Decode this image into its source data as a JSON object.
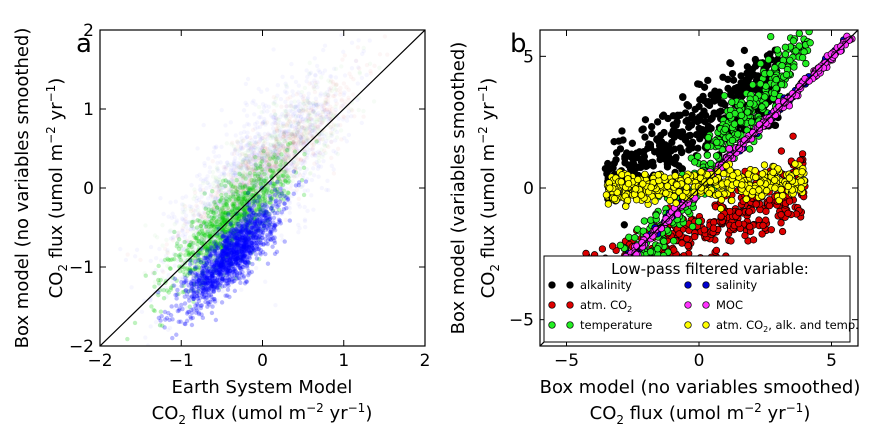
{
  "chart_data": [
    {
      "panel": "a",
      "type": "scatter",
      "xlabel_line1": "Earth System Model",
      "xlabel_line2": "CO2 flux (umol m−2 yr−1)",
      "ylabel_line1": "Box model (no variables smoothed)",
      "ylabel_line2": "CO2 flux (umol m−2 yr−1)",
      "xlim": [
        -2,
        2
      ],
      "ylim": [
        -2,
        2
      ],
      "xticks": [
        "−2",
        "−1",
        "0",
        "1",
        "2"
      ],
      "yticks": [
        "−2",
        "−1",
        "0",
        "1",
        "2"
      ],
      "identity_line": true,
      "series": [
        {
          "color": "#0000ff",
          "center": [
            -0.35,
            -0.85
          ],
          "spread": [
            0.32,
            0.28
          ],
          "note_density": "dense core, faint halo"
        },
        {
          "color": "#00c000",
          "center": [
            -0.2,
            -0.45
          ],
          "spread": [
            0.35,
            0.3
          ]
        },
        {
          "color": "#c00000",
          "center": [
            0.0,
            0.1
          ],
          "spread": [
            0.45,
            0.45
          ]
        }
      ]
    },
    {
      "panel": "b",
      "type": "scatter",
      "xlabel_line1": "Box model (no variables smoothed)",
      "xlabel_line2": "CO2 flux (umol m−2 yr−1)",
      "ylabel_line1": "Box model (variables smoothed)",
      "ylabel_line2": "CO2 flux (umol m−2 yr−1)",
      "xlim": [
        -6,
        6
      ],
      "ylim": [
        -6,
        6
      ],
      "xticks": [
        "−5",
        "0",
        "5"
      ],
      "yticks": [
        "−5",
        "0",
        "5"
      ],
      "identity_line": true,
      "legend": {
        "title": "Low-pass filtered variable:",
        "placement": "lower-right",
        "entries": [
          {
            "label": "alkalinity",
            "color": "#000000"
          },
          {
            "label": "salinity",
            "color": "#0000cc"
          },
          {
            "label": "atm. CO2",
            "color": "#dd0000"
          },
          {
            "label": "MOC",
            "color": "#ff33ff"
          },
          {
            "label": "temperature",
            "color": "#22ee22"
          },
          {
            "label": "atm. CO2, alk. and temp.",
            "color": "#ffff00"
          }
        ]
      },
      "series": [
        {
          "name": "alkalinity",
          "relation": "y ≈ 0.55x + 2.3, scatter ±0.9, x from −4 to 3"
        },
        {
          "name": "atm. CO2",
          "relation": "y ≈ 0.45x − 1.8, scatter ±0.7, x from −5 to 4"
        },
        {
          "name": "temperature",
          "relation": "y ≈ 1.3x + 0.5, scatter ±0.6, x from −3 to 4"
        },
        {
          "name": "salinity",
          "relation": "y ≈ x"
        },
        {
          "name": "MOC",
          "relation": "y ≈ x"
        },
        {
          "name": "atm. CO2, alk. and temp.",
          "relation": "y ≈ 0.05x, scatter ±0.35, x from −4 to 4"
        }
      ]
    }
  ],
  "labels": {
    "a": "a",
    "b": "b"
  }
}
